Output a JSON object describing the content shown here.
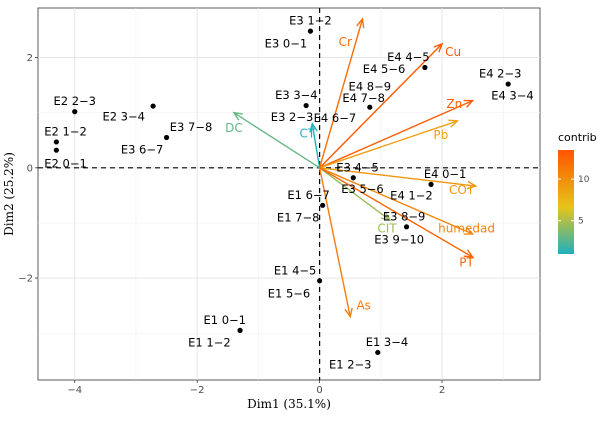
{
  "chart_data": {
    "type": "scatter",
    "subtype": "pca-biplot",
    "title": "",
    "xlabel": "Dim1 (35.1%)",
    "ylabel": "Dim2 (25.2%)",
    "xlim": [
      -4.6,
      3.6
    ],
    "ylim": [
      -3.85,
      2.9
    ],
    "xticks": [
      -4,
      -2,
      0,
      2
    ],
    "yticks": [
      -2,
      0,
      2
    ],
    "x_tick_labels": [
      "−4",
      "−2",
      "0",
      "2"
    ],
    "y_tick_labels": [
      "−2",
      "0",
      "2"
    ],
    "grid": true,
    "reference_lines": {
      "x": 0,
      "y": 0,
      "style": "dashed"
    },
    "individuals": [
      {
        "id": "ind-e3-1-2",
        "label": "E3 1−2",
        "x": -0.15,
        "y": 2.48,
        "lx": -0.15,
        "ly": 2.67,
        "anchor": "middle"
      },
      {
        "id": "ind-e3-0-1",
        "label": "E3 0−1",
        "x": -0.15,
        "y": 2.48,
        "lx": -0.55,
        "ly": 2.26,
        "anchor": "middle"
      },
      {
        "id": "ind-e2-2-3",
        "label": "E2 2−3",
        "x": -4.0,
        "y": 1.02,
        "lx": -4.0,
        "ly": 1.21,
        "anchor": "middle"
      },
      {
        "id": "ind-e2-3-4",
        "label": "E2 3−4",
        "x": -2.72,
        "y": 1.12,
        "lx": -3.2,
        "ly": 0.93,
        "anchor": "middle"
      },
      {
        "id": "ind-e2-1-2",
        "label": "E2 1−2",
        "x": -4.3,
        "y": 0.47,
        "lx": -4.15,
        "ly": 0.66,
        "anchor": "middle"
      },
      {
        "id": "ind-e2-0-1",
        "label": "E2 0−1",
        "x": -4.3,
        "y": 0.32,
        "lx": -4.15,
        "ly": 0.08,
        "anchor": "middle"
      },
      {
        "id": "ind-e3-7-8",
        "label": "E3 7−8",
        "x": -2.5,
        "y": 0.55,
        "lx": -2.1,
        "ly": 0.74,
        "anchor": "middle"
      },
      {
        "id": "ind-e3-6-7",
        "label": "E3 6−7",
        "x": -2.5,
        "y": 0.55,
        "lx": -2.9,
        "ly": 0.33,
        "anchor": "middle"
      },
      {
        "id": "ind-e3-3-4",
        "label": "E3 3−4",
        "x": -0.22,
        "y": 1.13,
        "lx": -0.38,
        "ly": 1.32,
        "anchor": "middle"
      },
      {
        "id": "ind-e3-2-3",
        "label": "E3 2−3",
        "x": -0.22,
        "y": 1.13,
        "lx": -0.45,
        "ly": 0.92,
        "anchor": "middle"
      },
      {
        "id": "ind-e4-4-5",
        "label": "E4 4−5",
        "x": 1.72,
        "y": 1.82,
        "lx": 1.45,
        "ly": 2.01,
        "anchor": "middle"
      },
      {
        "id": "ind-e4-5-6",
        "label": "E4 5−6",
        "x": 1.72,
        "y": 1.82,
        "lx": 1.4,
        "ly": 1.79,
        "anchor": "end"
      },
      {
        "id": "ind-e4-8-9",
        "label": "E4 8−9",
        "x": 0.82,
        "y": 1.1,
        "lx": 0.82,
        "ly": 1.48,
        "anchor": "middle"
      },
      {
        "id": "ind-e4-7-8",
        "label": "E4 7−8",
        "x": 0.82,
        "y": 1.1,
        "lx": 0.72,
        "ly": 1.27,
        "anchor": "middle"
      },
      {
        "id": "ind-e4-6-7",
        "label": "E4 6−7",
        "x": 0.82,
        "y": 1.1,
        "lx": 0.25,
        "ly": 0.9,
        "anchor": "middle"
      },
      {
        "id": "ind-e4-2-3",
        "label": "E4 2−3",
        "x": 3.08,
        "y": 1.52,
        "lx": 2.95,
        "ly": 1.71,
        "anchor": "middle"
      },
      {
        "id": "ind-e4-3-4",
        "label": "E4 3−4",
        "x": 3.08,
        "y": 1.52,
        "lx": 3.15,
        "ly": 1.31,
        "anchor": "middle"
      },
      {
        "id": "ind-e3-4-5",
        "label": "E3 4−5",
        "x": 0.55,
        "y": -0.18,
        "lx": 0.62,
        "ly": 0.01,
        "anchor": "middle"
      },
      {
        "id": "ind-e3-5-6",
        "label": "E3 5−6",
        "x": 0.55,
        "y": -0.18,
        "lx": 0.7,
        "ly": -0.38,
        "anchor": "middle"
      },
      {
        "id": "ind-e4-0-1",
        "label": "E4 0−1",
        "x": 1.82,
        "y": -0.3,
        "lx": 2.05,
        "ly": -0.11,
        "anchor": "middle"
      },
      {
        "id": "ind-e4-1-2",
        "label": "E4 1−2",
        "x": 1.82,
        "y": -0.3,
        "lx": 1.5,
        "ly": -0.5,
        "anchor": "middle"
      },
      {
        "id": "ind-e1-6-7",
        "label": "E1 6−7",
        "x": 0.05,
        "y": -0.68,
        "lx": -0.18,
        "ly": -0.49,
        "anchor": "middle"
      },
      {
        "id": "ind-e1-7-8",
        "label": "E1 7−8",
        "x": 0.05,
        "y": -0.68,
        "lx": -0.35,
        "ly": -0.9,
        "anchor": "middle"
      },
      {
        "id": "ind-e3-8-9",
        "label": "E3 8−9",
        "x": 1.42,
        "y": -1.07,
        "lx": 1.38,
        "ly": -0.88,
        "anchor": "middle"
      },
      {
        "id": "ind-e3-9-10",
        "label": "E3 9−10",
        "x": 1.42,
        "y": -1.07,
        "lx": 1.3,
        "ly": -1.3,
        "anchor": "middle"
      },
      {
        "id": "ind-e1-4-5",
        "label": "E1 4−5",
        "x": 0.0,
        "y": -2.05,
        "lx": -0.4,
        "ly": -1.86,
        "anchor": "middle"
      },
      {
        "id": "ind-e1-5-6",
        "label": "E1 5−6",
        "x": 0.0,
        "y": -2.05,
        "lx": -0.5,
        "ly": -2.28,
        "anchor": "middle"
      },
      {
        "id": "ind-e1-0-1",
        "label": "E1 0−1",
        "x": -1.3,
        "y": -2.95,
        "lx": -1.55,
        "ly": -2.76,
        "anchor": "middle"
      },
      {
        "id": "ind-e1-1-2",
        "label": "E1 1−2",
        "x": -1.3,
        "y": -2.95,
        "lx": -1.8,
        "ly": -3.17,
        "anchor": "middle"
      },
      {
        "id": "ind-e1-3-4",
        "label": "E1 3−4",
        "x": 0.95,
        "y": -3.35,
        "lx": 1.1,
        "ly": -3.16,
        "anchor": "middle"
      },
      {
        "id": "ind-e1-2-3",
        "label": "E1 2−3",
        "x": 0.95,
        "y": -3.35,
        "lx": 0.5,
        "ly": -3.57,
        "anchor": "middle"
      }
    ],
    "variables": [
      {
        "id": "var-cr",
        "label": "Cr",
        "x": 0.7,
        "y": 2.7,
        "lx": 0.42,
        "ly": 2.28,
        "contrib": 12.0
      },
      {
        "id": "var-cu",
        "label": "Cu",
        "x": 2.0,
        "y": 2.25,
        "lx": 2.18,
        "ly": 2.1,
        "contrib": 13.3
      },
      {
        "id": "var-zn",
        "label": "Zn",
        "x": 2.5,
        "y": 1.22,
        "lx": 2.2,
        "ly": 1.16,
        "contrib": 13.0
      },
      {
        "id": "var-pb",
        "label": "Pb",
        "x": 2.25,
        "y": 0.85,
        "lx": 1.98,
        "ly": 0.6,
        "contrib": 9.0
      },
      {
        "id": "var-dc",
        "label": "DC",
        "x": -1.4,
        "y": 1.0,
        "lx": -1.4,
        "ly": 0.72,
        "contrib": 3.0
      },
      {
        "id": "var-ct",
        "label": "CT",
        "x": -0.12,
        "y": 0.8,
        "lx": -0.2,
        "ly": 0.62,
        "contrib": 1.0
      },
      {
        "id": "var-cot",
        "label": "COT",
        "x": 2.55,
        "y": -0.33,
        "lx": 2.32,
        "ly": -0.4,
        "contrib": 9.5
      },
      {
        "id": "var-cit",
        "label": "CIT",
        "x": 1.15,
        "y": -0.95,
        "lx": 1.1,
        "ly": -1.1,
        "contrib": 4.5
      },
      {
        "id": "var-humedad",
        "label": "humedad",
        "x": 2.5,
        "y": -1.2,
        "lx": 2.4,
        "ly": -1.1,
        "contrib": 10.5
      },
      {
        "id": "var-pt",
        "label": "PT",
        "x": 2.5,
        "y": -1.62,
        "lx": 2.4,
        "ly": -1.72,
        "contrib": 12.5
      },
      {
        "id": "var-as",
        "label": "As",
        "x": 0.5,
        "y": -2.7,
        "lx": 0.72,
        "ly": -2.5,
        "contrib": 11.0
      }
    ],
    "legend": {
      "title": "contrib",
      "position": "right",
      "min": 1,
      "max": 13.5,
      "ticks": [
        5,
        10
      ],
      "colors": [
        "#1fb0c0",
        "#e6c41a",
        "#ff5500"
      ]
    }
  }
}
